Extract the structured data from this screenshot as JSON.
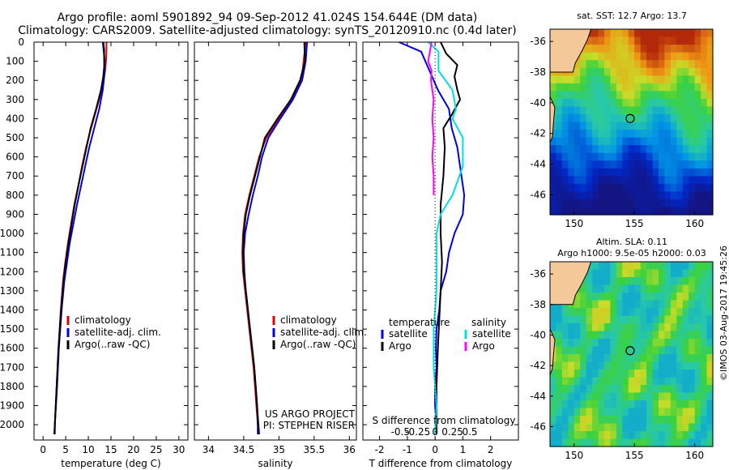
{
  "header": {
    "title_line1": "Argo profile: aoml 5901892_94 09-Sep-2012 41.024S 154.644E (DM data)",
    "title_line2": "Climatology: CARS2009. Satellite-adjusted climatology: synTS_20120910.nc (0.4d later)"
  },
  "stamp": "©IMOS 03-Aug-2017 19:45:26",
  "colors": {
    "climatology": "#e00000",
    "satellite": "#0000e6",
    "argo": "#000000",
    "sal_satellite": "#00e0e0",
    "sal_argo": "#ff00ff"
  },
  "chart_data": [
    {
      "type": "line",
      "id": "temperature",
      "xlabel": "temperature (deg C)",
      "ylabel": "depth",
      "xlim": [
        -2,
        32
      ],
      "ylim": [
        2080,
        0
      ],
      "xticks": [
        0,
        5,
        10,
        15,
        20,
        25,
        30
      ],
      "xtick_labels": [
        "0",
        "5",
        "10",
        "15",
        "20",
        "25",
        "30"
      ],
      "yticks": [
        0,
        100,
        200,
        300,
        400,
        500,
        600,
        700,
        800,
        900,
        1000,
        1100,
        1200,
        1300,
        1400,
        1500,
        1600,
        1700,
        1800,
        1900,
        2000
      ],
      "ytick_labels": [
        "0",
        "100",
        "200",
        "300",
        "400",
        "500",
        "600",
        "700",
        "800",
        "900",
        "1000",
        "1100",
        "1200",
        "1300",
        "1400",
        "1500",
        "1600",
        "1700",
        "1800",
        "1900",
        "2000"
      ],
      "legend": [
        "climatology",
        "satellite-adj. clim.",
        "Argo(..raw -QC)"
      ],
      "legend_position": "lower-middle",
      "series": [
        {
          "name": "climatology",
          "color": "#e00000",
          "points": [
            [
              14,
              0
            ],
            [
              14,
              50
            ],
            [
              13.9,
              100
            ],
            [
              13.7,
              150
            ],
            [
              13,
              250
            ],
            [
              11.8,
              350
            ],
            [
              10.6,
              450
            ],
            [
              9.5,
              550
            ],
            [
              8.6,
              650
            ],
            [
              7.8,
              750
            ],
            [
              6.9,
              850
            ],
            [
              6.2,
              950
            ],
            [
              5.5,
              1050
            ],
            [
              4.9,
              1150
            ],
            [
              4.4,
              1250
            ],
            [
              3.9,
              1400
            ],
            [
              3.4,
              1600
            ],
            [
              3,
              1800
            ],
            [
              2.6,
              2000
            ],
            [
              2.5,
              2050
            ]
          ]
        },
        {
          "name": "satellite-adj. clim.",
          "color": "#0000e6",
          "points": [
            [
              13.2,
              0
            ],
            [
              13.4,
              50
            ],
            [
              13.6,
              100
            ],
            [
              13.6,
              160
            ],
            [
              13.2,
              250
            ],
            [
              12.4,
              350
            ],
            [
              11.3,
              450
            ],
            [
              10.2,
              550
            ],
            [
              9.3,
              650
            ],
            [
              8.4,
              750
            ],
            [
              7.5,
              850
            ],
            [
              6.7,
              950
            ],
            [
              5.9,
              1050
            ],
            [
              5.3,
              1150
            ],
            [
              4.7,
              1250
            ],
            [
              4.1,
              1400
            ],
            [
              3.5,
              1600
            ],
            [
              3.1,
              1800
            ],
            [
              2.6,
              2000
            ],
            [
              2.6,
              2050
            ]
          ]
        },
        {
          "name": "Argo(..raw -QC)",
          "color": "#000000",
          "points": [
            [
              13.3,
              0
            ],
            [
              13.5,
              40
            ],
            [
              13.5,
              80
            ],
            [
              13.5,
              130
            ],
            [
              13.3,
              180
            ],
            [
              12.8,
              250
            ],
            [
              11.7,
              350
            ],
            [
              10.5,
              450
            ],
            [
              9.6,
              550
            ],
            [
              8.7,
              650
            ],
            [
              7.8,
              750
            ],
            [
              7,
              850
            ],
            [
              6.3,
              950
            ],
            [
              5.6,
              1050
            ],
            [
              5,
              1150
            ],
            [
              4.5,
              1250
            ],
            [
              4,
              1400
            ],
            [
              3.4,
              1600
            ],
            [
              3,
              1800
            ],
            [
              2.6,
              2000
            ],
            [
              2.5,
              2050
            ]
          ]
        }
      ]
    },
    {
      "type": "line",
      "id": "salinity",
      "xlabel": "salinity",
      "xlim": [
        33.8,
        36.1
      ],
      "ylim": [
        2080,
        0
      ],
      "xticks": [
        34,
        34.5,
        35,
        35.5,
        36
      ],
      "xtick_labels": [
        "34",
        "34.5",
        "35",
        "35.5",
        "36"
      ],
      "legend": [
        "climatology",
        "satellite-adj. clim.",
        "Argo(..raw -QC)"
      ],
      "legend_position": "lower-right",
      "annotations": [
        "US ARGO PROJECT",
        "PI: STEPHEN RISER"
      ],
      "series": [
        {
          "name": "climatology",
          "color": "#e00000",
          "points": [
            [
              35.38,
              0
            ],
            [
              35.35,
              100
            ],
            [
              35.32,
              200
            ],
            [
              35.18,
              300
            ],
            [
              35.0,
              400
            ],
            [
              34.82,
              500
            ],
            [
              34.72,
              600
            ],
            [
              34.65,
              700
            ],
            [
              34.58,
              800
            ],
            [
              34.52,
              900
            ],
            [
              34.49,
              1000
            ],
            [
              34.48,
              1100
            ],
            [
              34.49,
              1200
            ],
            [
              34.52,
              1300
            ],
            [
              34.55,
              1400
            ],
            [
              34.58,
              1500
            ],
            [
              34.61,
              1600
            ],
            [
              34.64,
              1700
            ],
            [
              34.66,
              1800
            ],
            [
              34.68,
              1900
            ],
            [
              34.7,
              2000
            ],
            [
              34.71,
              2050
            ]
          ]
        },
        {
          "name": "satellite-adj. clim.",
          "color": "#0000e6",
          "points": [
            [
              35.4,
              0
            ],
            [
              35.38,
              100
            ],
            [
              35.33,
              200
            ],
            [
              35.2,
              300
            ],
            [
              35.02,
              400
            ],
            [
              34.85,
              500
            ],
            [
              34.76,
              600
            ],
            [
              34.7,
              700
            ],
            [
              34.63,
              800
            ],
            [
              34.57,
              900
            ],
            [
              34.52,
              1000
            ],
            [
              34.5,
              1100
            ],
            [
              34.51,
              1200
            ],
            [
              34.53,
              1300
            ],
            [
              34.56,
              1400
            ],
            [
              34.59,
              1500
            ],
            [
              34.62,
              1600
            ],
            [
              34.65,
              1700
            ],
            [
              34.67,
              1800
            ],
            [
              34.69,
              1900
            ],
            [
              34.71,
              2000
            ],
            [
              34.72,
              2050
            ]
          ]
        },
        {
          "name": "Argo(..raw -QC)",
          "color": "#000000",
          "points": [
            [
              35.36,
              0
            ],
            [
              35.37,
              100
            ],
            [
              35.3,
              200
            ],
            [
              35.17,
              300
            ],
            [
              34.98,
              400
            ],
            [
              34.8,
              500
            ],
            [
              34.73,
              600
            ],
            [
              34.66,
              700
            ],
            [
              34.59,
              800
            ],
            [
              34.53,
              900
            ],
            [
              34.5,
              1000
            ],
            [
              34.49,
              1100
            ],
            [
              34.5,
              1200
            ],
            [
              34.53,
              1300
            ],
            [
              34.56,
              1400
            ],
            [
              34.59,
              1500
            ],
            [
              34.62,
              1600
            ],
            [
              34.65,
              1700
            ],
            [
              34.67,
              1800
            ],
            [
              34.69,
              1900
            ],
            [
              34.7,
              2000
            ],
            [
              34.7,
              2050
            ]
          ]
        }
      ]
    },
    {
      "type": "line",
      "id": "difference",
      "xlabel": "T difference from climatology",
      "top_axis_label": "S difference from climatology",
      "xlim": [
        -2.6,
        3
      ],
      "ylim": [
        2080,
        0
      ],
      "xticks": [
        -2,
        -1,
        0,
        1,
        2
      ],
      "xtick_labels": [
        "-2",
        "-1",
        "0",
        "1",
        "2"
      ],
      "sticks": [
        -0.5,
        -0.25,
        0,
        0.25,
        0.5
      ],
      "stick_labels": [
        "-0.5",
        "-0.25",
        "0",
        "0.25",
        "0.5"
      ],
      "s_scale": 2.5,
      "legend_groups": [
        {
          "title": "temperature",
          "items": [
            "satellite",
            "Argo"
          ]
        },
        {
          "title": "salinity",
          "items": [
            "satellite",
            "Argo"
          ]
        }
      ],
      "legend_position": "lower-middle",
      "series": [
        {
          "name": "temperature satellite",
          "color": "#0000e6",
          "points": [
            [
              -1.3,
              0
            ],
            [
              -0.5,
              50
            ],
            [
              -0.2,
              150
            ],
            [
              0.1,
              250
            ],
            [
              0.5,
              350
            ],
            [
              0.6,
              450
            ],
            [
              0.8,
              550
            ],
            [
              0.9,
              650
            ],
            [
              1,
              750
            ],
            [
              1.05,
              800
            ],
            [
              1,
              900
            ],
            [
              0.7,
              1000
            ],
            [
              0.5,
              1100
            ],
            [
              0.4,
              1200
            ],
            [
              0.2,
              1300
            ],
            [
              0.15,
              1400
            ],
            [
              0.05,
              1500
            ],
            [
              0.03,
              1600
            ],
            [
              0.05,
              1700
            ],
            [
              0,
              1800
            ],
            [
              0,
              1900
            ],
            [
              0.05,
              2000
            ],
            [
              0.05,
              2050
            ]
          ]
        },
        {
          "name": "temperature Argo",
          "color": "#000000",
          "points": [
            [
              0.2,
              0
            ],
            [
              0.4,
              60
            ],
            [
              0.8,
              120
            ],
            [
              0.7,
              180
            ],
            [
              0.8,
              250
            ],
            [
              0.9,
              300
            ],
            [
              0.6,
              380
            ],
            [
              0.3,
              450
            ],
            [
              0.35,
              550
            ],
            [
              0.3,
              700
            ],
            [
              0.2,
              850
            ],
            [
              0.2,
              1000
            ],
            [
              0.25,
              1150
            ],
            [
              0.2,
              1300
            ],
            [
              0.15,
              1450
            ],
            [
              0.1,
              1600
            ],
            [
              0.05,
              1800
            ],
            [
              0.05,
              2000
            ],
            [
              0.05,
              2050
            ]
          ]
        },
        {
          "name": "salinity satellite",
          "color": "#00e0e0",
          "points": [
            [
              -0.1,
              0
            ],
            [
              0.05,
              50
            ],
            [
              0.05,
              150
            ],
            [
              0.25,
              250
            ],
            [
              0.3,
              350
            ],
            [
              0.25,
              400
            ],
            [
              0.4,
              500
            ],
            [
              0.4,
              650
            ],
            [
              0.25,
              800
            ],
            [
              0.08,
              900
            ],
            [
              0.02,
              1000
            ],
            [
              0.02,
              1300
            ],
            [
              -0.02,
              1500
            ],
            [
              -0.02,
              1700
            ],
            [
              0.02,
              1900
            ],
            [
              0,
              2050
            ]
          ]
        },
        {
          "name": "salinity Argo",
          "color": "#ff00ff",
          "points": [
            [
              -0.05,
              0
            ],
            [
              -0.08,
              60
            ],
            [
              -0.1,
              100
            ],
            [
              -0.05,
              150
            ],
            [
              -0.06,
              200
            ],
            [
              -0.02,
              300
            ],
            [
              -0.04,
              400
            ],
            [
              -0.02,
              500
            ],
            [
              -0.04,
              600
            ],
            [
              -0.02,
              700
            ],
            [
              -0.02,
              800
            ]
          ]
        }
      ]
    },
    {
      "type": "heatmap",
      "id": "sst_map",
      "title": "sat. SST: 12.7 Argo: 13.7",
      "xlim": [
        148,
        161.5
      ],
      "ylim": [
        -47.3,
        -35.2
      ],
      "xticks": [
        150,
        155,
        160
      ],
      "xtick_labels": [
        "150",
        "155",
        "160"
      ],
      "yticks": [
        -36,
        -38,
        -40,
        -42,
        -44,
        -46
      ],
      "ytick_labels": [
        "-36",
        "-38",
        "-40",
        "-42",
        "-44",
        "-46"
      ],
      "float_position": [
        154.644,
        -41.024
      ],
      "land_color": "#f5c89a"
    },
    {
      "type": "heatmap",
      "id": "sla_map",
      "title_line1": "Altim. SLA: 0.11",
      "title_line2": "Argo h1000: 9.5e-05 h2000: 0.03",
      "xlim": [
        148,
        161.5
      ],
      "ylim": [
        -47.3,
        -35.2
      ],
      "xticks": [
        150,
        155,
        160
      ],
      "xtick_labels": [
        "150",
        "155",
        "160"
      ],
      "yticks": [
        -36,
        -38,
        -40,
        -42,
        -44,
        -46
      ],
      "ytick_labels": [
        "-36",
        "-38",
        "-40",
        "-42",
        "-44",
        "-46"
      ],
      "float_position": [
        154.644,
        -41.024
      ],
      "land_color": "#f5c89a"
    }
  ]
}
